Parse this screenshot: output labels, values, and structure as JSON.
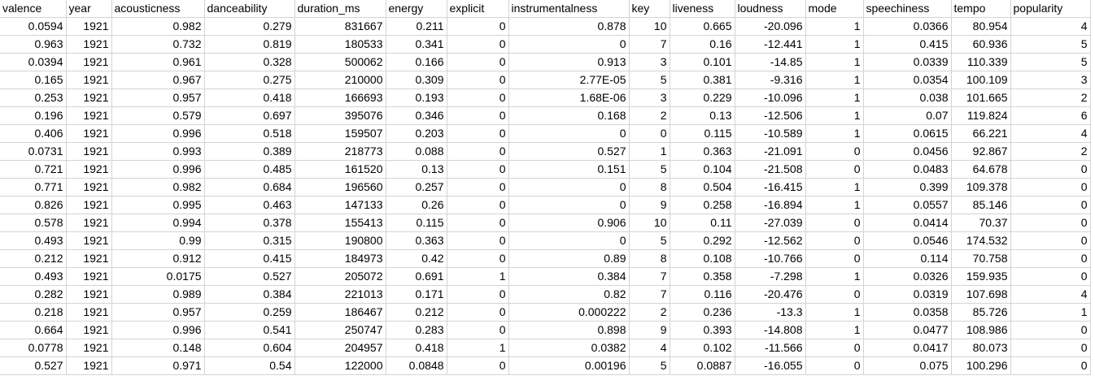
{
  "columns": [
    "valence",
    "year",
    "acousticness",
    "danceability",
    "duration_ms",
    "energy",
    "explicit",
    "instrumentalness",
    "key",
    "liveness",
    "loudness",
    "mode",
    "speechiness",
    "tempo",
    "popularity"
  ],
  "rows": [
    [
      "0.0594",
      "1921",
      "0.982",
      "0.279",
      "831667",
      "0.211",
      "0",
      "0.878",
      "10",
      "0.665",
      "-20.096",
      "1",
      "0.0366",
      "80.954",
      "4"
    ],
    [
      "0.963",
      "1921",
      "0.732",
      "0.819",
      "180533",
      "0.341",
      "0",
      "0",
      "7",
      "0.16",
      "-12.441",
      "1",
      "0.415",
      "60.936",
      "5"
    ],
    [
      "0.0394",
      "1921",
      "0.961",
      "0.328",
      "500062",
      "0.166",
      "0",
      "0.913",
      "3",
      "0.101",
      "-14.85",
      "1",
      "0.0339",
      "110.339",
      "5"
    ],
    [
      "0.165",
      "1921",
      "0.967",
      "0.275",
      "210000",
      "0.309",
      "0",
      "2.77E-05",
      "5",
      "0.381",
      "-9.316",
      "1",
      "0.0354",
      "100.109",
      "3"
    ],
    [
      "0.253",
      "1921",
      "0.957",
      "0.418",
      "166693",
      "0.193",
      "0",
      "1.68E-06",
      "3",
      "0.229",
      "-10.096",
      "1",
      "0.038",
      "101.665",
      "2"
    ],
    [
      "0.196",
      "1921",
      "0.579",
      "0.697",
      "395076",
      "0.346",
      "0",
      "0.168",
      "2",
      "0.13",
      "-12.506",
      "1",
      "0.07",
      "119.824",
      "6"
    ],
    [
      "0.406",
      "1921",
      "0.996",
      "0.518",
      "159507",
      "0.203",
      "0",
      "0",
      "0",
      "0.115",
      "-10.589",
      "1",
      "0.0615",
      "66.221",
      "4"
    ],
    [
      "0.0731",
      "1921",
      "0.993",
      "0.389",
      "218773",
      "0.088",
      "0",
      "0.527",
      "1",
      "0.363",
      "-21.091",
      "0",
      "0.0456",
      "92.867",
      "2"
    ],
    [
      "0.721",
      "1921",
      "0.996",
      "0.485",
      "161520",
      "0.13",
      "0",
      "0.151",
      "5",
      "0.104",
      "-21.508",
      "0",
      "0.0483",
      "64.678",
      "0"
    ],
    [
      "0.771",
      "1921",
      "0.982",
      "0.684",
      "196560",
      "0.257",
      "0",
      "0",
      "8",
      "0.504",
      "-16.415",
      "1",
      "0.399",
      "109.378",
      "0"
    ],
    [
      "0.826",
      "1921",
      "0.995",
      "0.463",
      "147133",
      "0.26",
      "0",
      "0",
      "9",
      "0.258",
      "-16.894",
      "1",
      "0.0557",
      "85.146",
      "0"
    ],
    [
      "0.578",
      "1921",
      "0.994",
      "0.378",
      "155413",
      "0.115",
      "0",
      "0.906",
      "10",
      "0.11",
      "-27.039",
      "0",
      "0.0414",
      "70.37",
      "0"
    ],
    [
      "0.493",
      "1921",
      "0.99",
      "0.315",
      "190800",
      "0.363",
      "0",
      "0",
      "5",
      "0.292",
      "-12.562",
      "0",
      "0.0546",
      "174.532",
      "0"
    ],
    [
      "0.212",
      "1921",
      "0.912",
      "0.415",
      "184973",
      "0.42",
      "0",
      "0.89",
      "8",
      "0.108",
      "-10.766",
      "0",
      "0.114",
      "70.758",
      "0"
    ],
    [
      "0.493",
      "1921",
      "0.0175",
      "0.527",
      "205072",
      "0.691",
      "1",
      "0.384",
      "7",
      "0.358",
      "-7.298",
      "1",
      "0.0326",
      "159.935",
      "0"
    ],
    [
      "0.282",
      "1921",
      "0.989",
      "0.384",
      "221013",
      "0.171",
      "0",
      "0.82",
      "7",
      "0.116",
      "-20.476",
      "0",
      "0.0319",
      "107.698",
      "4"
    ],
    [
      "0.218",
      "1921",
      "0.957",
      "0.259",
      "186467",
      "0.212",
      "0",
      "0.000222",
      "2",
      "0.236",
      "-13.3",
      "1",
      "0.0358",
      "85.726",
      "1"
    ],
    [
      "0.664",
      "1921",
      "0.996",
      "0.541",
      "250747",
      "0.283",
      "0",
      "0.898",
      "9",
      "0.393",
      "-14.808",
      "1",
      "0.0477",
      "108.986",
      "0"
    ],
    [
      "0.0778",
      "1921",
      "0.148",
      "0.604",
      "204957",
      "0.418",
      "1",
      "0.0382",
      "4",
      "0.102",
      "-11.566",
      "0",
      "0.0417",
      "80.073",
      "0"
    ],
    [
      "0.527",
      "1921",
      "0.971",
      "0.54",
      "122000",
      "0.0848",
      "0",
      "0.00196",
      "5",
      "0.0887",
      "-16.055",
      "0",
      "0.075",
      "100.296",
      "0"
    ]
  ]
}
